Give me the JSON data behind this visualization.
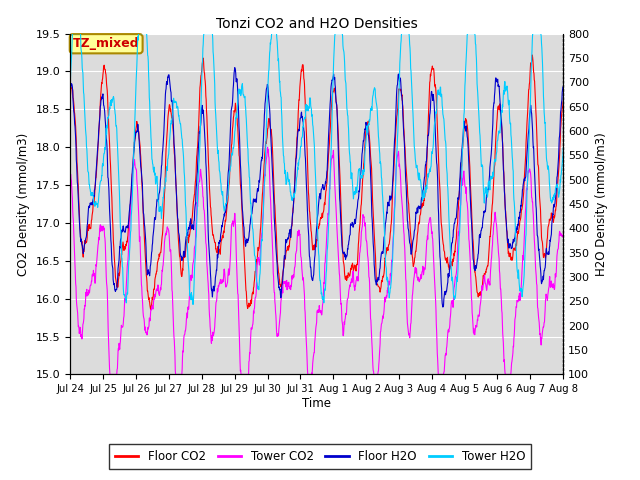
{
  "title": "Tonzi CO2 and H2O Densities",
  "xlabel": "Time",
  "ylabel_left": "CO2 Density (mmol/m3)",
  "ylabel_right": "H2O Density (mmol/m3)",
  "co2_ylim": [
    15.0,
    19.5
  ],
  "h2o_ylim": [
    100,
    800
  ],
  "co2_yticks": [
    15.0,
    15.5,
    16.0,
    16.5,
    17.0,
    17.5,
    18.0,
    18.5,
    19.0,
    19.5
  ],
  "h2o_yticks": [
    100,
    150,
    200,
    250,
    300,
    350,
    400,
    450,
    500,
    550,
    600,
    650,
    700,
    750,
    800
  ],
  "xtick_labels": [
    "Jul 24",
    "Jul 25",
    "Jul 26",
    "Jul 27",
    "Jul 28",
    "Jul 29",
    "Jul 30",
    "Jul 31",
    "Aug 1",
    "Aug 2",
    "Aug 3",
    "Aug 4",
    "Aug 5",
    "Aug 6",
    "Aug 7",
    "Aug 8"
  ],
  "legend_labels": [
    "Floor CO2",
    "Tower CO2",
    "Floor H2O",
    "Tower H2O"
  ],
  "legend_colors": [
    "#FF0000",
    "#FF00FF",
    "#0000CC",
    "#00CCFF"
  ],
  "annotation_text": "TZ_mixed",
  "annotation_color": "#CC0000",
  "annotation_bg": "#FFFF99",
  "annotation_border": "#AA8800",
  "plot_bg": "#DCDCDC",
  "fig_bg": "#FFFFFF",
  "grid_color": "#FFFFFF",
  "n_points": 1500,
  "seed": 7
}
